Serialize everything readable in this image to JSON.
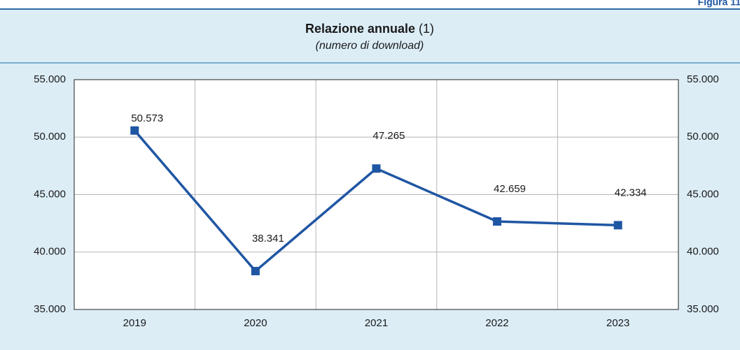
{
  "chart_data": {
    "type": "line",
    "figure_label": "Figura 11.",
    "title": "Relazione annuale",
    "title_note": "(1)",
    "subtitle": "(numero di download)",
    "categories": [
      "2019",
      "2020",
      "2021",
      "2022",
      "2023"
    ],
    "values": [
      50573,
      38341,
      47265,
      42659,
      42334
    ],
    "value_labels": [
      "50.573",
      "38.341",
      "47.265",
      "42.659",
      "42.334"
    ],
    "color": "#1f56a3",
    "ylim": [
      35000,
      55000
    ],
    "yticks": [
      {
        "value": 35000,
        "label": "35.000"
      },
      {
        "value": 40000,
        "label": "40.000"
      },
      {
        "value": 45000,
        "label": "45.000"
      },
      {
        "value": 50000,
        "label": "50.000"
      },
      {
        "value": 55000,
        "label": "55.000"
      }
    ],
    "grid": true
  }
}
